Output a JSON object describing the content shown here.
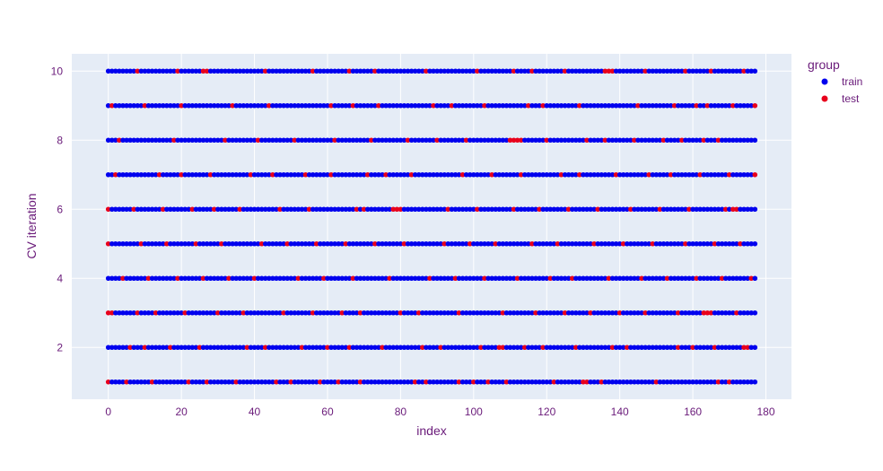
{
  "chart_data": {
    "type": "scatter",
    "xlabel": "index",
    "ylabel": "CV iteration",
    "xlim": [
      -10,
      187
    ],
    "ylim": [
      0.5,
      10.5
    ],
    "x_ticks": [
      0,
      20,
      40,
      60,
      80,
      100,
      120,
      140,
      160,
      180
    ],
    "y_ticks": [
      2,
      4,
      6,
      8,
      10
    ],
    "grid": true,
    "plot_background": "#e5ecf6",
    "legend": {
      "title": "group",
      "placement": "right"
    },
    "x_range": [
      0,
      177
    ],
    "iterations": [
      1,
      2,
      3,
      4,
      5,
      6,
      7,
      8,
      9,
      10
    ],
    "series": [
      {
        "name": "train",
        "color": "#0000ee",
        "rule": "index not in test_indices for that iteration"
      },
      {
        "name": "test",
        "color": "#e8001c"
      }
    ],
    "test_indices": {
      "1": [
        0,
        5,
        12,
        22,
        27,
        35,
        46,
        50,
        58,
        63,
        69,
        84,
        87,
        96,
        100,
        104,
        109,
        122,
        130,
        131,
        135,
        150,
        167,
        170
      ],
      "2": [
        6,
        10,
        17,
        25,
        38,
        43,
        53,
        60,
        66,
        75,
        86,
        91,
        102,
        107,
        108,
        114,
        119,
        128,
        138,
        142,
        156,
        160,
        166,
        174,
        175
      ],
      "3": [
        0,
        1,
        8,
        13,
        21,
        30,
        37,
        48,
        56,
        64,
        69,
        80,
        85,
        96,
        108,
        117,
        125,
        132,
        140,
        147,
        156,
        163,
        164,
        165,
        172
      ],
      "4": [
        4,
        11,
        19,
        26,
        33,
        40,
        52,
        59,
        67,
        77,
        88,
        95,
        103,
        112,
        121,
        127,
        137,
        146,
        153,
        161,
        168,
        176
      ],
      "5": [
        0,
        9,
        16,
        24,
        31,
        42,
        49,
        57,
        65,
        73,
        81,
        92,
        99,
        106,
        116,
        123,
        133,
        141,
        149,
        158,
        166,
        173
      ],
      "6": [
        0,
        7,
        15,
        23,
        29,
        36,
        47,
        55,
        68,
        70,
        78,
        79,
        80,
        93,
        101,
        111,
        118,
        126,
        134,
        143,
        151,
        159,
        169,
        171,
        172
      ],
      "7": [
        2,
        14,
        20,
        28,
        39,
        45,
        54,
        61,
        71,
        76,
        83,
        97,
        105,
        113,
        124,
        129,
        139,
        148,
        154,
        162,
        170,
        177
      ],
      "8": [
        3,
        18,
        32,
        41,
        51,
        62,
        72,
        82,
        90,
        98,
        110,
        111,
        112,
        113,
        120,
        131,
        136,
        144,
        152,
        157,
        163,
        167
      ],
      "9": [
        1,
        10,
        20,
        34,
        44,
        61,
        67,
        74,
        89,
        94,
        103,
        115,
        119,
        129,
        145,
        155,
        161,
        164,
        171,
        177
      ],
      "10": [
        8,
        19,
        26,
        27,
        43,
        56,
        66,
        73,
        87,
        101,
        111,
        116,
        125,
        136,
        137,
        138,
        147,
        158,
        165,
        174
      ]
    }
  }
}
